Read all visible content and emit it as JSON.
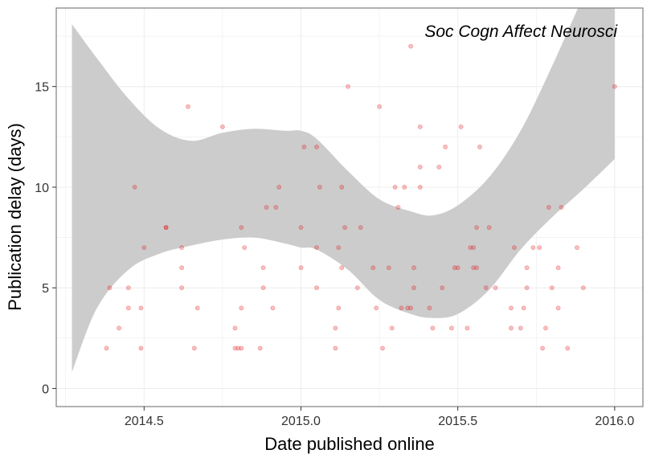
{
  "chart_data": {
    "type": "scatter",
    "annotation": "Soc Cogn Affect Neurosci",
    "xlabel": "Date published online",
    "ylabel": "Publication delay (days)",
    "xlim": [
      2014.22,
      2016.09
    ],
    "ylim": [
      -0.9,
      18.9
    ],
    "x_ticks": [
      2014.5,
      2015.0,
      2015.5,
      2016.0
    ],
    "x_tick_labels": [
      "2014.5",
      "2015.0",
      "2015.5",
      "2016.0"
    ],
    "y_ticks": [
      0,
      5,
      10,
      15
    ],
    "y_tick_labels": [
      "0",
      "5",
      "10",
      "15"
    ],
    "grid": true,
    "legend": "none",
    "colors": {
      "points": "#e31a1c",
      "band": "#cccccc",
      "panel_border": "#7f7f7f",
      "grid": "#ececec"
    },
    "points": [
      [
        2014.38,
        2
      ],
      [
        2014.39,
        5
      ],
      [
        2014.42,
        3
      ],
      [
        2014.45,
        4
      ],
      [
        2014.45,
        5
      ],
      [
        2014.47,
        10
      ],
      [
        2014.49,
        2
      ],
      [
        2014.49,
        4
      ],
      [
        2014.5,
        7
      ],
      [
        2014.57,
        8
      ],
      [
        2014.57,
        8
      ],
      [
        2014.62,
        5
      ],
      [
        2014.62,
        6
      ],
      [
        2014.62,
        7
      ],
      [
        2014.64,
        14
      ],
      [
        2014.66,
        2
      ],
      [
        2014.67,
        4
      ],
      [
        2014.75,
        13
      ],
      [
        2014.79,
        2
      ],
      [
        2014.79,
        3
      ],
      [
        2014.8,
        2
      ],
      [
        2014.81,
        2
      ],
      [
        2014.81,
        4
      ],
      [
        2014.82,
        7
      ],
      [
        2014.81,
        8
      ],
      [
        2014.87,
        2
      ],
      [
        2014.88,
        5
      ],
      [
        2014.88,
        6
      ],
      [
        2014.89,
        9
      ],
      [
        2014.91,
        4
      ],
      [
        2014.92,
        9
      ],
      [
        2014.93,
        10
      ],
      [
        2015.0,
        6
      ],
      [
        2015.0,
        8
      ],
      [
        2015.01,
        12
      ],
      [
        2015.05,
        12
      ],
      [
        2015.05,
        5
      ],
      [
        2015.06,
        10
      ],
      [
        2015.05,
        7
      ],
      [
        2015.11,
        2
      ],
      [
        2015.11,
        3
      ],
      [
        2015.12,
        4
      ],
      [
        2015.12,
        7
      ],
      [
        2015.13,
        6
      ],
      [
        2015.13,
        10
      ],
      [
        2015.14,
        8
      ],
      [
        2015.15,
        15
      ],
      [
        2015.18,
        5
      ],
      [
        2015.19,
        8
      ],
      [
        2015.23,
        6
      ],
      [
        2015.24,
        4
      ],
      [
        2015.25,
        14
      ],
      [
        2015.26,
        2
      ],
      [
        2015.28,
        6
      ],
      [
        2015.29,
        3
      ],
      [
        2015.3,
        10
      ],
      [
        2015.31,
        9
      ],
      [
        2015.32,
        4
      ],
      [
        2015.33,
        10
      ],
      [
        2015.34,
        4
      ],
      [
        2015.35,
        17
      ],
      [
        2015.35,
        4
      ],
      [
        2015.36,
        5
      ],
      [
        2015.36,
        6
      ],
      [
        2015.38,
        10
      ],
      [
        2015.38,
        11
      ],
      [
        2015.38,
        13
      ],
      [
        2015.41,
        4
      ],
      [
        2015.42,
        3
      ],
      [
        2015.44,
        11
      ],
      [
        2015.45,
        5
      ],
      [
        2015.46,
        12
      ],
      [
        2015.48,
        3
      ],
      [
        2015.49,
        6
      ],
      [
        2015.5,
        6
      ],
      [
        2015.51,
        13
      ],
      [
        2015.53,
        3
      ],
      [
        2015.54,
        7
      ],
      [
        2015.55,
        6
      ],
      [
        2015.55,
        7
      ],
      [
        2015.56,
        8
      ],
      [
        2015.56,
        6
      ],
      [
        2015.57,
        12
      ],
      [
        2015.59,
        5
      ],
      [
        2015.6,
        8
      ],
      [
        2015.62,
        5
      ],
      [
        2015.67,
        3
      ],
      [
        2015.67,
        4
      ],
      [
        2015.68,
        7
      ],
      [
        2015.7,
        3
      ],
      [
        2015.71,
        4
      ],
      [
        2015.72,
        6
      ],
      [
        2015.72,
        5
      ],
      [
        2015.74,
        7
      ],
      [
        2015.76,
        7
      ],
      [
        2015.77,
        2
      ],
      [
        2015.78,
        3
      ],
      [
        2015.79,
        9
      ],
      [
        2015.8,
        5
      ],
      [
        2015.82,
        6
      ],
      [
        2015.82,
        4
      ],
      [
        2015.83,
        9
      ],
      [
        2015.85,
        2
      ],
      [
        2015.88,
        7
      ],
      [
        2015.9,
        5
      ],
      [
        2016.0,
        15
      ]
    ],
    "smooth_fit": {
      "x": [
        2014.27,
        2014.35,
        2014.45,
        2014.55,
        2014.65,
        2014.75,
        2014.85,
        2014.95,
        2015.0,
        2015.05,
        2015.15,
        2015.25,
        2015.35,
        2015.42,
        2015.5,
        2015.6,
        2015.7,
        2015.8,
        2015.9,
        2016.0
      ],
      "upper": [
        18.1,
        16.4,
        14.4,
        12.9,
        12.3,
        12.7,
        12.9,
        12.8,
        12.8,
        12.4,
        10.8,
        9.4,
        8.8,
        8.6,
        9.1,
        10.5,
        12.8,
        16.0,
        19.5,
        23.0
      ],
      "lower": [
        0.8,
        4.0,
        5.9,
        6.7,
        7.1,
        7.4,
        7.5,
        7.2,
        7.0,
        6.9,
        5.9,
        4.4,
        3.7,
        3.5,
        3.7,
        4.9,
        6.9,
        8.5,
        9.9,
        11.4
      ]
    }
  }
}
